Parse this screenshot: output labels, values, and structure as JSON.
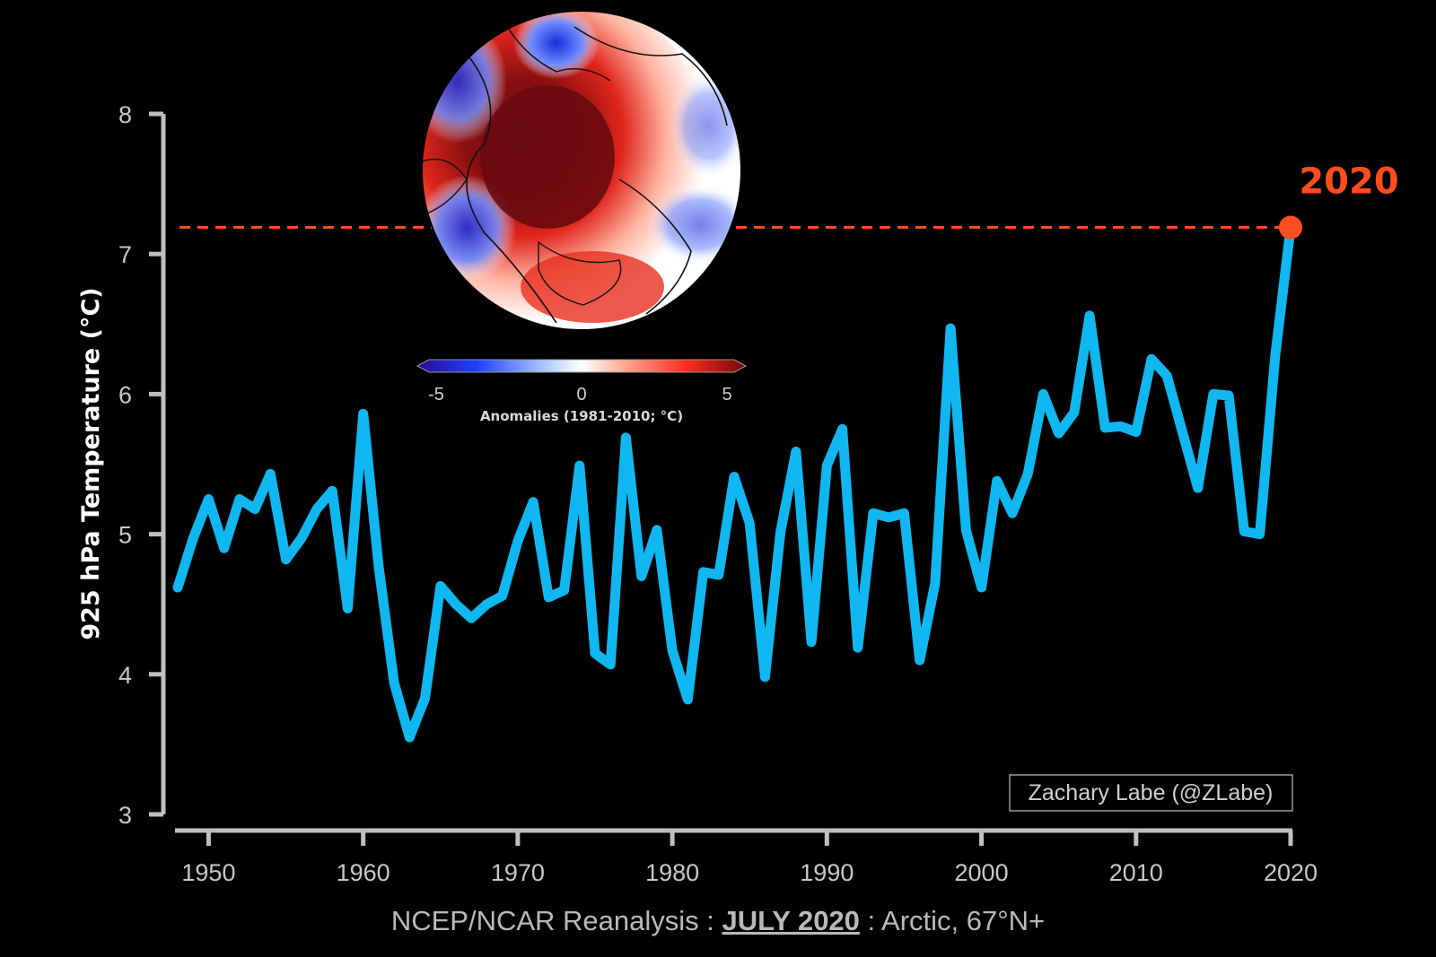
{
  "colors": {
    "background": "#000000",
    "series_line": "#10b7f0",
    "highlight": "#ff4d1f",
    "axis": "#bfbfbf",
    "tick_text": "#c8c8c8"
  },
  "inset_map": {
    "type": "polar anomaly map",
    "colorbar": {
      "ticks": [
        "-5",
        "0",
        "5"
      ],
      "label": "Anomalies (1981-2010; °C)",
      "min": -5,
      "max": 5,
      "colors": [
        "#3a0fa3",
        "#1f3fff",
        "#ffffff",
        "#ff2a1a",
        "#7a0a0a"
      ]
    }
  },
  "highlight": {
    "label": "2020"
  },
  "credit": {
    "text": "Zachary Labe (@ZLabe)"
  },
  "footer": {
    "prefix": "NCEP/NCAR Reanalysis : ",
    "emphasis": "JULY 2020",
    "suffix": " : Arctic, 67°N+"
  },
  "chart_data": {
    "type": "line",
    "xlabel": "",
    "ylabel": "925 hPa Temperature (°C)",
    "xlim": [
      1948,
      2020
    ],
    "ylim": [
      3,
      8
    ],
    "xticks": [
      1950,
      1960,
      1970,
      1980,
      1990,
      2000,
      2010,
      2020
    ],
    "yticks": [
      3,
      4,
      5,
      6,
      7,
      8
    ],
    "grid": false,
    "series": [
      {
        "x": [
          1948,
          1949,
          1950,
          1951,
          1952,
          1953,
          1954,
          1955,
          1956,
          1957,
          1958,
          1959,
          1960,
          1961,
          1962,
          1963,
          1964,
          1965,
          1966,
          1967,
          1968,
          1969,
          1970,
          1971,
          1972,
          1973,
          1974,
          1975,
          1976,
          1977,
          1978,
          1979,
          1980,
          1981,
          1982,
          1983,
          1984,
          1985,
          1986,
          1987,
          1988,
          1989,
          1990,
          1991,
          1992,
          1993,
          1994,
          1995,
          1996,
          1997,
          1998,
          1999,
          2000,
          2001,
          2002,
          2003,
          2004,
          2005,
          2006,
          2007,
          2008,
          2009,
          2010,
          2011,
          2012,
          2013,
          2014,
          2015,
          2016,
          2017,
          2018,
          2019,
          2020
        ],
        "values": [
          4.62,
          4.97,
          5.25,
          4.9,
          5.25,
          5.18,
          5.43,
          4.82,
          4.97,
          5.18,
          5.31,
          4.47,
          5.86,
          4.77,
          3.94,
          3.55,
          3.83,
          4.63,
          4.5,
          4.4,
          4.5,
          4.56,
          4.95,
          5.23,
          4.55,
          4.6,
          5.49,
          4.15,
          4.07,
          5.69,
          4.7,
          5.03,
          4.17,
          3.82,
          4.73,
          4.71,
          5.41,
          5.08,
          3.98,
          5.02,
          5.59,
          4.23,
          5.49,
          5.75,
          4.19,
          5.15,
          5.12,
          5.15,
          4.1,
          4.65,
          6.47,
          5.03,
          4.62,
          5.38,
          5.15,
          5.43,
          6.0,
          5.72,
          5.87,
          6.56,
          5.76,
          5.77,
          5.73,
          6.25,
          6.13,
          5.73,
          5.33,
          6.0,
          5.99,
          5.02,
          5.0,
          6.27,
          7.19
        ]
      }
    ],
    "highlight_point": {
      "x": 2020,
      "y": 7.19,
      "label": "2020"
    }
  }
}
